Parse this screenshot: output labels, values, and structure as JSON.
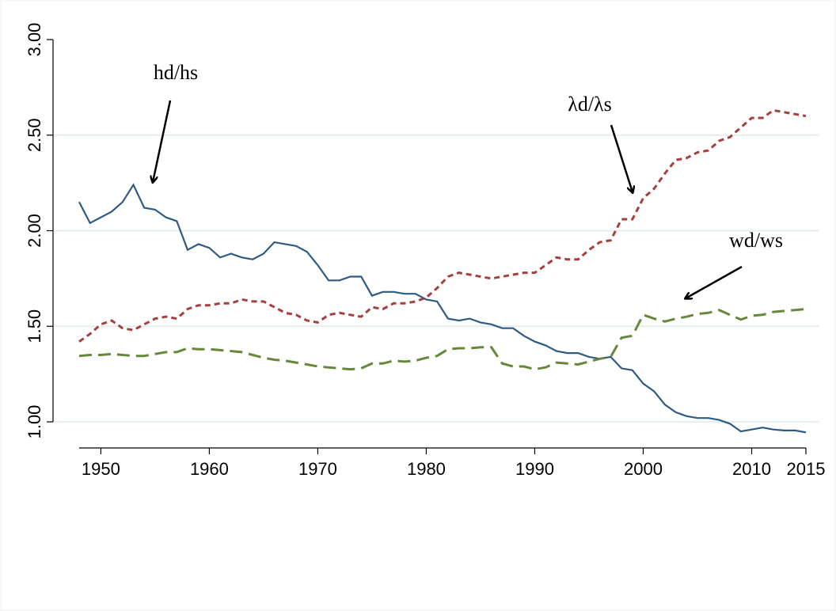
{
  "chart_data": {
    "type": "line",
    "x": [
      1948,
      1949,
      1950,
      1951,
      1952,
      1953,
      1954,
      1955,
      1956,
      1957,
      1958,
      1959,
      1960,
      1961,
      1962,
      1963,
      1964,
      1965,
      1966,
      1967,
      1968,
      1969,
      1970,
      1971,
      1972,
      1973,
      1974,
      1975,
      1976,
      1977,
      1978,
      1979,
      1980,
      1981,
      1982,
      1983,
      1984,
      1985,
      1986,
      1987,
      1988,
      1989,
      1990,
      1991,
      1992,
      1993,
      1994,
      1995,
      1996,
      1997,
      1998,
      1999,
      2000,
      2001,
      2002,
      2003,
      2004,
      2005,
      2006,
      2007,
      2008,
      2009,
      2010,
      2011,
      2012,
      2013,
      2014,
      2015
    ],
    "series": [
      {
        "name": "hd/hs",
        "color": "#2e5b84",
        "values": [
          2.15,
          2.04,
          2.07,
          2.1,
          2.15,
          2.24,
          2.12,
          2.11,
          2.07,
          2.05,
          1.9,
          1.93,
          1.91,
          1.86,
          1.88,
          1.86,
          1.85,
          1.88,
          1.94,
          1.93,
          1.92,
          1.89,
          1.82,
          1.74,
          1.74,
          1.76,
          1.76,
          1.66,
          1.68,
          1.68,
          1.67,
          1.67,
          1.64,
          1.63,
          1.54,
          1.53,
          1.54,
          1.52,
          1.51,
          1.49,
          1.49,
          1.45,
          1.42,
          1.4,
          1.37,
          1.36,
          1.36,
          1.34,
          1.33,
          1.34,
          1.28,
          1.27,
          1.2,
          1.16,
          1.09,
          1.05,
          1.03,
          1.02,
          1.02,
          1.01,
          0.99,
          0.95,
          0.96,
          0.97,
          0.96,
          0.955,
          0.955,
          0.945
        ]
      },
      {
        "name": "λd/λs",
        "color": "#a5403f",
        "values": [
          1.42,
          1.46,
          1.51,
          1.53,
          1.49,
          1.48,
          1.51,
          1.54,
          1.55,
          1.54,
          1.59,
          1.61,
          1.61,
          1.62,
          1.62,
          1.64,
          1.63,
          1.63,
          1.6,
          1.57,
          1.56,
          1.53,
          1.52,
          1.56,
          1.57,
          1.56,
          1.55,
          1.6,
          1.59,
          1.62,
          1.62,
          1.63,
          1.65,
          1.7,
          1.76,
          1.78,
          1.77,
          1.76,
          1.75,
          1.76,
          1.77,
          1.78,
          1.78,
          1.82,
          1.86,
          1.85,
          1.85,
          1.9,
          1.94,
          1.95,
          2.06,
          2.06,
          2.17,
          2.22,
          2.3,
          2.37,
          2.38,
          2.41,
          2.42,
          2.47,
          2.49,
          2.54,
          2.59,
          2.59,
          2.63,
          2.62,
          2.61,
          2.6
        ]
      },
      {
        "name": "wd/ws",
        "color": "#67883a",
        "values": [
          1.345,
          1.35,
          1.35,
          1.355,
          1.35,
          1.345,
          1.345,
          1.355,
          1.365,
          1.365,
          1.385,
          1.38,
          1.38,
          1.375,
          1.37,
          1.365,
          1.35,
          1.335,
          1.325,
          1.32,
          1.31,
          1.3,
          1.29,
          1.285,
          1.28,
          1.275,
          1.28,
          1.305,
          1.305,
          1.32,
          1.315,
          1.32,
          1.335,
          1.345,
          1.38,
          1.385,
          1.385,
          1.39,
          1.39,
          1.305,
          1.29,
          1.29,
          1.275,
          1.285,
          1.31,
          1.305,
          1.3,
          1.315,
          1.33,
          1.34,
          1.44,
          1.45,
          1.56,
          1.54,
          1.525,
          1.54,
          1.55,
          1.565,
          1.57,
          1.585,
          1.56,
          1.535,
          1.555,
          1.56,
          1.575,
          1.58,
          1.585,
          1.59
        ]
      }
    ],
    "xlim": [
      1948,
      2015
    ],
    "xticks": [
      1950,
      1960,
      1970,
      1980,
      1990,
      2000,
      2010,
      2015
    ],
    "ylim": [
      1,
      3
    ],
    "yticks": [
      {
        "value": 1,
        "label": "1.00"
      },
      {
        "value": 1.5,
        "label": "1.50"
      },
      {
        "value": 2,
        "label": "2.00"
      },
      {
        "value": 2.5,
        "label": "2.50"
      },
      {
        "value": 3,
        "label": "3.00"
      }
    ],
    "grid": true
  }
}
